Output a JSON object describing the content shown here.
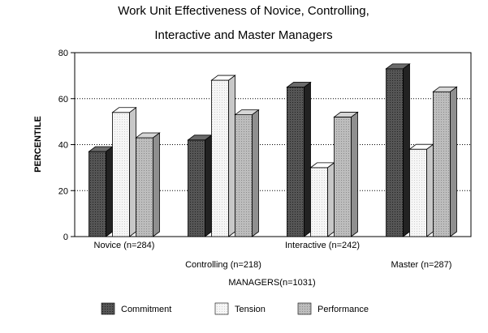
{
  "chart_data": {
    "type": "bar",
    "title_line1": "Work Unit Effectiveness of Novice, Controlling,",
    "title_line2": "Interactive and Master Managers",
    "xlabel": "MANAGERS(n=1031)",
    "ylabel": "PERCENTILE",
    "ylim": [
      0,
      80
    ],
    "yticks": [
      "0",
      "20",
      "40",
      "60",
      "80"
    ],
    "grid": true,
    "legend_position": "bottom",
    "categories": [
      "Novice (n=284)",
      "Controlling (n=218)",
      "Interactive (n=242)",
      "Master (n=287)"
    ],
    "series": [
      {
        "name": "Commitment",
        "values": [
          37,
          42,
          65,
          73
        ],
        "color": "#4a4a4a"
      },
      {
        "name": "Tension",
        "values": [
          54,
          68,
          30,
          38
        ],
        "color": "#f2f2f2"
      },
      {
        "name": "Performance",
        "values": [
          43,
          53,
          52,
          63
        ],
        "color": "#b4b4b4"
      }
    ]
  }
}
